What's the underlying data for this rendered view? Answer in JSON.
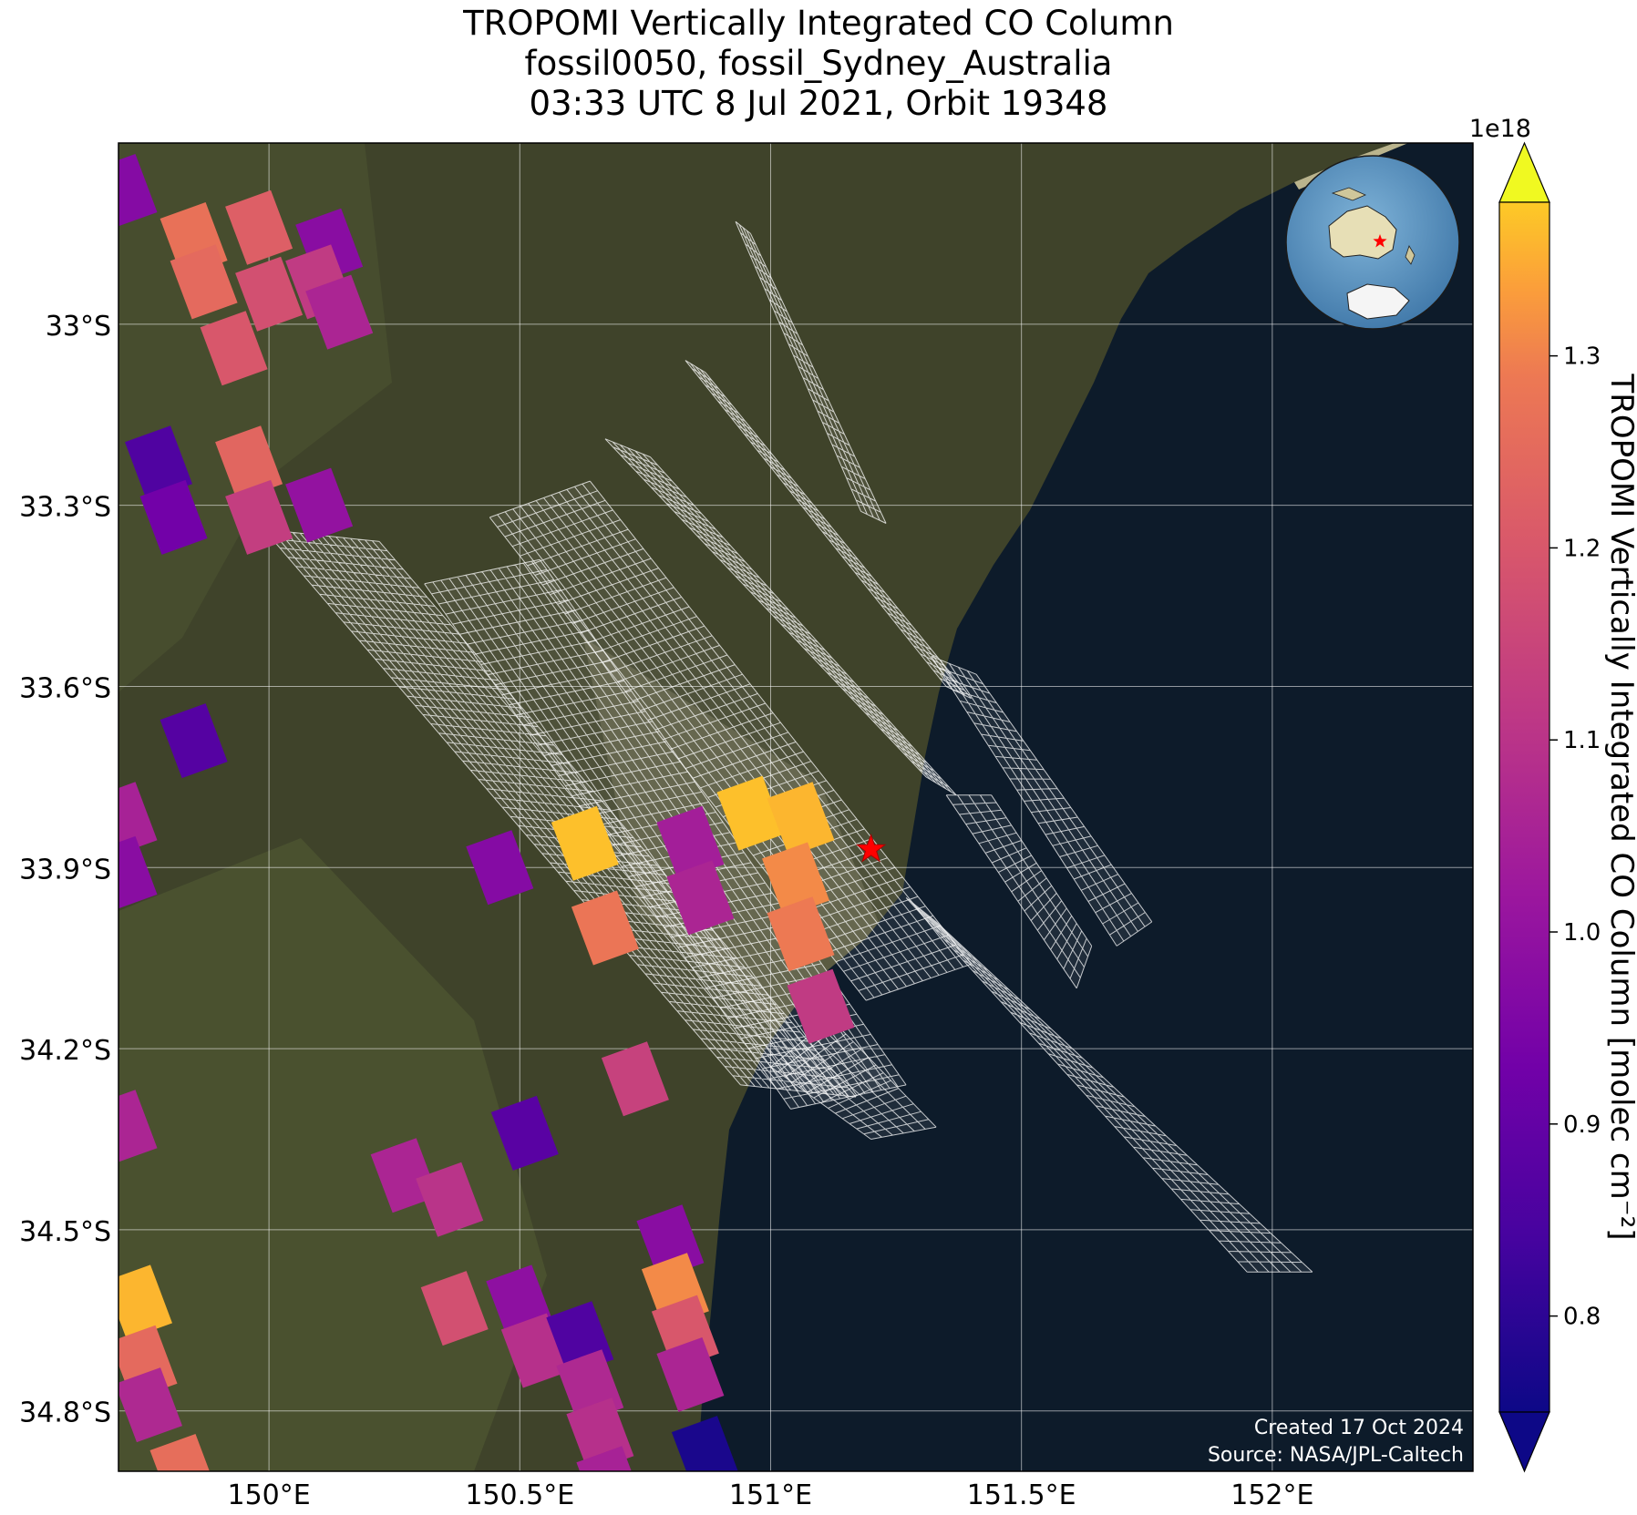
{
  "title": {
    "line1": "TROPOMI Vertically Integrated CO Column",
    "line2": "fossil0050, fossil_Sydney_Australia",
    "line3": "03:33 UTC 8 Jul 2021, Orbit 19348"
  },
  "map": {
    "extent": {
      "lon_min": 149.7,
      "lon_max": 152.4,
      "lat_min": -34.9,
      "lat_max": -32.7
    },
    "lat_ticks": [
      {
        "value": -33.0,
        "label": "33°S"
      },
      {
        "value": -33.3,
        "label": "33.3°S"
      },
      {
        "value": -33.6,
        "label": "33.6°S"
      },
      {
        "value": -33.9,
        "label": "33.9°S"
      },
      {
        "value": -34.2,
        "label": "34.2°S"
      },
      {
        "value": -34.5,
        "label": "34.5°S"
      },
      {
        "value": -34.8,
        "label": "34.8°S"
      }
    ],
    "lon_ticks": [
      {
        "value": 150.0,
        "label": "150°E"
      },
      {
        "value": 150.5,
        "label": "150.5°E"
      },
      {
        "value": 151.0,
        "label": "151°E"
      },
      {
        "value": 151.5,
        "label": "151.5°E"
      },
      {
        "value": 152.0,
        "label": "152°E"
      }
    ],
    "grid": true,
    "target": {
      "name": "fossil_Sydney_Australia",
      "lon": 151.2,
      "lat": -33.87,
      "marker": "star",
      "color": "#ff0000"
    },
    "land_color": "#3f432a",
    "ocean_color": "#0d1b2a",
    "footprint_grid_color": "#ffffff",
    "credits": {
      "created": "Created 17 Oct 2024",
      "source": "Source: NASA/JPL-Caltech"
    }
  },
  "colorbar": {
    "label": "TROPOMI Vertically Integrated CO Column [molec cm⁻²]",
    "multiplier": "1e18",
    "colormap": "plasma",
    "range": [
      0.75,
      1.38
    ],
    "ticks": [
      {
        "value": 0.8,
        "label": "0.8"
      },
      {
        "value": 0.9,
        "label": "0.9"
      },
      {
        "value": 1.0,
        "label": "1.0"
      },
      {
        "value": 1.1,
        "label": "1.1"
      },
      {
        "value": 1.2,
        "label": "1.2"
      },
      {
        "value": 1.3,
        "label": "1.3"
      }
    ],
    "extend": "both"
  },
  "chart_data": {
    "type": "heatmap",
    "variable": "CO column (×1e18 molec cm⁻²)",
    "pixels": [
      {
        "lon": 149.85,
        "lat": -32.86,
        "value": 1.27
      },
      {
        "lon": 149.98,
        "lat": -32.84,
        "value": 1.22
      },
      {
        "lon": 150.12,
        "lat": -32.87,
        "value": 0.98
      },
      {
        "lon": 149.87,
        "lat": -32.93,
        "value": 1.25
      },
      {
        "lon": 150.0,
        "lat": -32.95,
        "value": 1.18
      },
      {
        "lon": 150.1,
        "lat": -32.93,
        "value": 1.12
      },
      {
        "lon": 150.14,
        "lat": -32.98,
        "value": 1.06
      },
      {
        "lon": 149.93,
        "lat": -33.04,
        "value": 1.2
      },
      {
        "lon": 149.78,
        "lat": -33.23,
        "value": 0.86
      },
      {
        "lon": 149.81,
        "lat": -33.32,
        "value": 0.93
      },
      {
        "lon": 149.96,
        "lat": -33.23,
        "value": 1.24
      },
      {
        "lon": 149.98,
        "lat": -33.32,
        "value": 1.13
      },
      {
        "lon": 150.1,
        "lat": -33.3,
        "value": 1.0
      },
      {
        "lon": 149.85,
        "lat": -33.69,
        "value": 0.87
      },
      {
        "lon": 150.46,
        "lat": -33.9,
        "value": 0.97
      },
      {
        "lon": 150.63,
        "lat": -33.86,
        "value": 1.37
      },
      {
        "lon": 150.84,
        "lat": -33.86,
        "value": 1.04
      },
      {
        "lon": 150.96,
        "lat": -33.81,
        "value": 1.37
      },
      {
        "lon": 151.06,
        "lat": -33.82,
        "value": 1.36
      },
      {
        "lon": 151.05,
        "lat": -33.92,
        "value": 1.31
      },
      {
        "lon": 151.06,
        "lat": -34.01,
        "value": 1.29
      },
      {
        "lon": 150.86,
        "lat": -33.95,
        "value": 1.06
      },
      {
        "lon": 150.67,
        "lat": -34.0,
        "value": 1.28
      },
      {
        "lon": 151.1,
        "lat": -34.13,
        "value": 1.12
      },
      {
        "lon": 150.73,
        "lat": -34.25,
        "value": 1.14
      },
      {
        "lon": 150.51,
        "lat": -34.34,
        "value": 0.88
      },
      {
        "lon": 150.27,
        "lat": -34.41,
        "value": 1.06
      },
      {
        "lon": 150.36,
        "lat": -34.45,
        "value": 1.1
      },
      {
        "lon": 150.8,
        "lat": -34.52,
        "value": 0.98
      },
      {
        "lon": 150.81,
        "lat": -34.6,
        "value": 1.31
      },
      {
        "lon": 150.83,
        "lat": -34.67,
        "value": 1.2
      },
      {
        "lon": 150.84,
        "lat": -34.74,
        "value": 1.06
      },
      {
        "lon": 150.37,
        "lat": -34.63,
        "value": 1.18
      },
      {
        "lon": 150.5,
        "lat": -34.62,
        "value": 0.99
      },
      {
        "lon": 150.53,
        "lat": -34.7,
        "value": 1.09
      },
      {
        "lon": 150.62,
        "lat": -34.68,
        "value": 0.86
      },
      {
        "lon": 150.64,
        "lat": -34.76,
        "value": 1.07
      },
      {
        "lon": 150.66,
        "lat": -34.84,
        "value": 1.09
      },
      {
        "lon": 150.68,
        "lat": -34.92,
        "value": 1.05
      },
      {
        "lon": 150.87,
        "lat": -34.87,
        "value": 0.77
      },
      {
        "lon": 149.74,
        "lat": -34.62,
        "value": 1.36
      },
      {
        "lon": 149.75,
        "lat": -34.72,
        "value": 1.25
      },
      {
        "lon": 149.76,
        "lat": -34.79,
        "value": 1.07
      },
      {
        "lon": 149.83,
        "lat": -34.9,
        "value": 1.26
      },
      {
        "lon": 149.71,
        "lat": -33.82,
        "value": 1.05
      },
      {
        "lon": 149.71,
        "lat": -33.91,
        "value": 0.98
      },
      {
        "lon": 149.71,
        "lat": -34.33,
        "value": 1.06
      },
      {
        "lon": 149.71,
        "lat": -32.78,
        "value": 0.97
      }
    ],
    "footprint_swaths": [
      {
        "corners": [
          [
            149.99,
            -33.34
          ],
          [
            150.22,
            -33.36
          ],
          [
            151.17,
            -34.28
          ],
          [
            150.94,
            -34.26
          ]
        ],
        "cols": 16,
        "rows": 60
      },
      {
        "corners": [
          [
            150.31,
            -33.43
          ],
          [
            150.54,
            -33.39
          ],
          [
            151.27,
            -34.26
          ],
          [
            151.04,
            -34.3
          ]
        ],
        "cols": 14,
        "rows": 52
      },
      {
        "corners": [
          [
            150.44,
            -33.32
          ],
          [
            150.64,
            -33.26
          ],
          [
            151.4,
            -34.06
          ],
          [
            151.19,
            -34.12
          ]
        ],
        "cols": 13,
        "rows": 50
      },
      {
        "corners": [
          [
            150.67,
            -33.19
          ],
          [
            150.76,
            -33.22
          ],
          [
            151.37,
            -33.78
          ],
          [
            151.31,
            -33.75
          ]
        ],
        "cols": 6,
        "rows": 42
      },
      {
        "corners": [
          [
            150.83,
            -33.06
          ],
          [
            150.87,
            -33.08
          ],
          [
            151.4,
            -33.62
          ],
          [
            151.35,
            -33.6
          ]
        ],
        "cols": 4,
        "rows": 40
      },
      {
        "corners": [
          [
            150.93,
            -32.83
          ],
          [
            150.96,
            -32.85
          ],
          [
            151.23,
            -33.33
          ],
          [
            151.18,
            -33.31
          ]
        ],
        "cols": 4,
        "rows": 26
      },
      {
        "corners": [
          [
            151.32,
            -33.55
          ],
          [
            151.41,
            -33.58
          ],
          [
            151.76,
            -33.99
          ],
          [
            151.69,
            -34.03
          ]
        ],
        "cols": 5,
        "rows": 26
      },
      {
        "corners": [
          [
            151.35,
            -33.78
          ],
          [
            151.44,
            -33.78
          ],
          [
            151.64,
            -34.03
          ],
          [
            151.61,
            -34.1
          ]
        ],
        "cols": 4,
        "rows": 20
      },
      {
        "corners": [
          [
            151.27,
            -33.95
          ],
          [
            151.33,
            -33.99
          ],
          [
            152.08,
            -34.57
          ],
          [
            151.95,
            -34.57
          ]
        ],
        "cols": 6,
        "rows": 36
      },
      {
        "corners": [
          [
            151.0,
            -34.23
          ],
          [
            151.12,
            -34.15
          ],
          [
            151.33,
            -34.33
          ],
          [
            151.2,
            -34.35
          ]
        ],
        "cols": 6,
        "rows": 14
      }
    ]
  }
}
